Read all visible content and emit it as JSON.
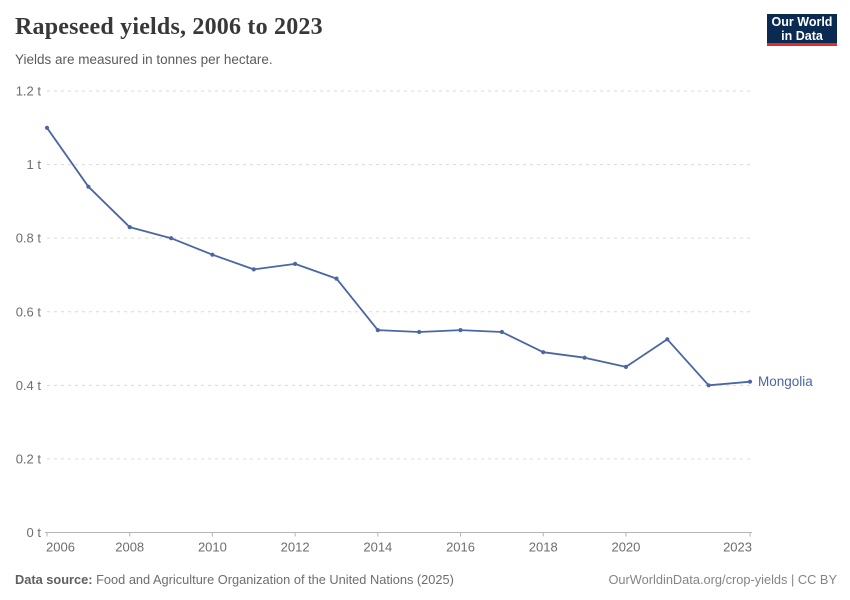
{
  "header": {
    "title": "Rapeseed yields, 2006 to 2023",
    "subtitle": "Yields are measured in tonnes per hectare.",
    "logo": {
      "line1": "Our World",
      "line2": "in Data",
      "bg": "#0b2a52",
      "stripe": "#e02c2c"
    }
  },
  "chart_data": {
    "type": "line",
    "title": "Rapeseed yields, 2006 to 2023",
    "ylabel": "tonnes per hectare",
    "unit": "t",
    "ylim": [
      0,
      1.2
    ],
    "yticks": [
      {
        "value": 0,
        "label": "0 t"
      },
      {
        "value": 0.2,
        "label": "0.2 t"
      },
      {
        "value": 0.4,
        "label": "0.4 t"
      },
      {
        "value": 0.6,
        "label": "0.6 t"
      },
      {
        "value": 0.8,
        "label": "0.8 t"
      },
      {
        "value": 1,
        "label": "1 t"
      },
      {
        "value": 1.2,
        "label": "1.2 t"
      }
    ],
    "xticks": [
      2006,
      2008,
      2010,
      2012,
      2014,
      2016,
      2018,
      2020,
      2023
    ],
    "grid": "dashed-horizontal",
    "legend_position": "end-of-line",
    "x": [
      2006,
      2007,
      2008,
      2009,
      2010,
      2011,
      2012,
      2013,
      2014,
      2015,
      2016,
      2017,
      2018,
      2019,
      2020,
      2021,
      2022,
      2023
    ],
    "series": [
      {
        "name": "Mongolia",
        "color": "#4a67a3",
        "values": [
          1.1,
          0.94,
          0.83,
          0.8,
          0.755,
          0.715,
          0.73,
          0.69,
          0.55,
          0.545,
          0.55,
          0.545,
          0.49,
          0.475,
          0.45,
          0.525,
          0.4,
          0.41
        ]
      }
    ],
    "axis_color": "#b5b5b5",
    "gridline_color": "#dadada",
    "tick_label_color": "#6e6e6e"
  },
  "footer": {
    "source_label": "Data source:",
    "source_text": "Food and Agriculture Organization of the United Nations (2025)",
    "link": "OurWorldinData.org/crop-yields",
    "separator": " | ",
    "license": "CC BY"
  }
}
